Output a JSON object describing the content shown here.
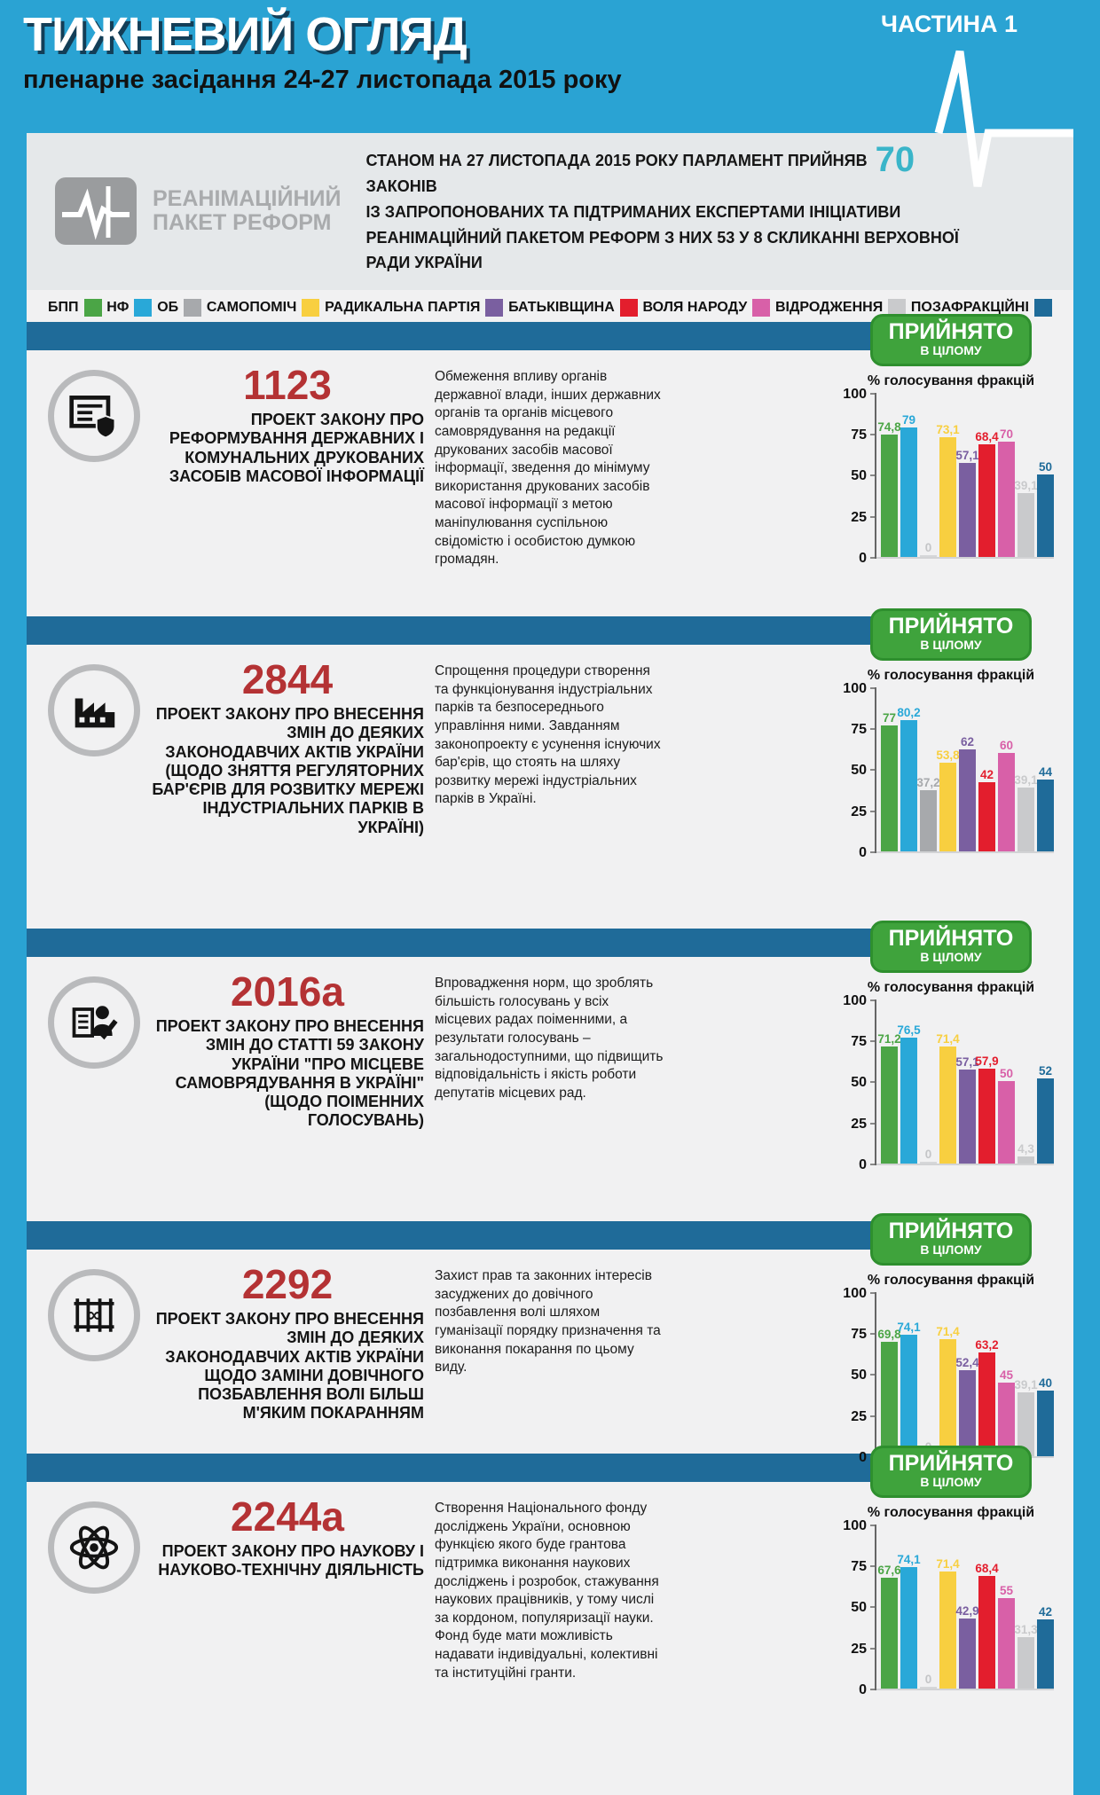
{
  "page": {
    "title": "ТИЖНЕВИЙ ОГЛЯД",
    "subtitle": "пленарне засідання 24-27 листопада 2015 року",
    "part_label": "ЧАСТИНА 1"
  },
  "colors": {
    "background": "#2aa3d3",
    "panel": "#f1f1f2",
    "intro_box": "#e5e8ea",
    "divider": "#1f6b99",
    "badge_green": "#3fa33c",
    "law_number_red": "#b43234",
    "accent_teal": "#3ab5c9"
  },
  "intro": {
    "logo_line1": "РЕАНІМАЦІЙНИЙ",
    "logo_line2": "ПАКЕТ РЕФОРМ",
    "line1_before": "СТАНОМ НА 27 ЛИСТОПАДА 2015 РОКУ ПАРЛАМЕНТ ПРИЙНЯВ",
    "laws_count": "70",
    "line1_after": "ЗАКОНІВ",
    "line2": "ІЗ ЗАПРОПОНОВАНИХ ТА ПІДТРИМАНИХ ЕКСПЕРТАМИ ІНІЦІАТИВИ",
    "line3": "РЕАНІМАЦІЙНИЙ ПАКЕТОМ РЕФОРМ З НИХ 53 У 8 СКЛИКАННІ ВЕРХОВНОЇ РАДИ УКРАЇНИ"
  },
  "legend": {
    "items": [
      {
        "label": "БПП",
        "color": "#4ba546"
      },
      {
        "label": "НФ",
        "color": "#29a8d8"
      },
      {
        "label": "ОБ",
        "color": "#a7a9ac"
      },
      {
        "label": "САМОПОМІЧ",
        "color": "#f8cf40"
      },
      {
        "label": "РАДИКАЛЬНА ПАРТІЯ",
        "color": "#7a5fa0"
      },
      {
        "label": "БАТЬКІВЩИНА",
        "color": "#e31e2d"
      },
      {
        "label": "ВОЛЯ НАРОДУ",
        "color": "#d860a8"
      },
      {
        "label": "ВІДРОДЖЕННЯ",
        "color": "#c9cacc"
      },
      {
        "label": "ПОЗАФРАКЦІЙНІ",
        "color": "#1f6b99"
      }
    ]
  },
  "common": {
    "badge_line1": "ПРИЙНЯТО",
    "badge_line2": "В ЦІЛОМУ"
  },
  "chart_common": {
    "title": "% голосування фракцій",
    "yticks": [
      100,
      75,
      50,
      25,
      0
    ]
  },
  "sections": [
    {
      "number": "1123",
      "icon": "newspaper-shield",
      "title": "ПРОЕКТ ЗАКОНУ ПРО РЕФОРМУВАННЯ ДЕРЖАВНИХ І КОМУНАЛЬНИХ ДРУКОВАНИХ ЗАСОБІВ МАСОВОЇ ІНФОРМАЦІЇ",
      "description": "Обмеження впливу органів державної влади, інших державних органів та органів місцевого самоврядування на редакції друкованих засобів масової інформації, зведення до мінімуму використання друкованих засобів масової інформації з метою маніпулювання суспільною свідомістю і особистою думкою громадян."
    },
    {
      "number": "2844",
      "icon": "factory",
      "title": "ПРОЕКТ ЗАКОНУ ПРО ВНЕСЕННЯ ЗМІН ДО ДЕЯКИХ ЗАКОНОДАВЧИХ АКТІВ УКРАЇНИ (ЩОДО ЗНЯТТЯ РЕГУЛЯТОРНИХ БАР'ЄРІВ ДЛЯ РОЗВИТКУ МЕРЕЖІ ІНДУСТРІАЛЬНИХ ПАРКІВ В УКРАЇНІ)",
      "description": "Спрощення процедури створення та функціонування індустріальних парків та безпосереднього управління ними. Завданням законопроекту є усунення існуючих бар'єрів, що стоять на шляху розвитку мережі індустріальних парків в Україні."
    },
    {
      "number": "2016а",
      "icon": "voter-checklist",
      "title": "ПРОЕКТ ЗАКОНУ ПРО ВНЕСЕННЯ ЗМІН ДО СТАТТІ 59 ЗАКОНУ УКРАЇНИ \"ПРО МІСЦЕВЕ САМОВРЯДУВАННЯ В УКРАЇНІ\" (ЩОДО ПОІМЕННИХ ГОЛОСУВАНЬ)",
      "description": "Впровадження норм, що зроблять більшість голосувань у всіх місцевих радах поіменними, а результати голосувань – загальнодоступними, що підвищить відповідальність і якість роботи депутатів місцевих рад."
    },
    {
      "number": "2292",
      "icon": "prison-bars",
      "title": "ПРОЕКТ ЗАКОНУ ПРО ВНЕСЕННЯ ЗМІН ДО ДЕЯКИХ ЗАКОНОДАВЧИХ АКТІВ УКРАЇНИ ЩОДО ЗАМІНИ ДОВІЧНОГО ПОЗБАВЛЕННЯ ВОЛІ БІЛЬШ М'ЯКИМ ПОКАРАННЯМ",
      "description": "Захист прав та законних інтересів засуджених до довічного позбавлення волі шляхом гуманізації порядку призначення та виконання покарання по цьому виду."
    },
    {
      "number": "2244а",
      "icon": "atom",
      "title": "ПРОЕКТ ЗАКОНУ ПРО НАУКОВУ І НАУКОВО-ТЕХНІЧНУ ДІЯЛЬНІСТЬ",
      "description": "Створення Національного фонду досліджень України, основною функцією якого буде грантова підтримка виконання наукових досліджень і розробок, стажування наукових працівників, у тому числі за кордоном, популяризації науки. Фонд буде мати можливість надавати індивідуальні, колективні та інституційні гранти."
    }
  ],
  "chart_data": [
    {
      "type": "bar",
      "law": "1123",
      "title": "% голосування фракцій",
      "categories": [
        "БПП",
        "НФ",
        "ОБ",
        "САМОПОМІЧ",
        "РАДИКАЛЬНА ПАРТІЯ",
        "БАТЬКІВЩИНА",
        "ВОЛЯ НАРОДУ",
        "ВІДРОДЖЕННЯ",
        "ПОЗАФРАКЦІЙНІ"
      ],
      "values": [
        74.8,
        79,
        0,
        73.1,
        57.1,
        68.4,
        70,
        39.1,
        50
      ],
      "labels": [
        "74,8",
        "79",
        "0",
        "73,1",
        "57,1",
        "68,4",
        "70",
        "39,1",
        "50"
      ],
      "ylim": [
        0,
        100
      ],
      "ylabel": "%",
      "result": "ПРИЙНЯТО В ЦІЛОМУ"
    },
    {
      "type": "bar",
      "law": "2844",
      "title": "% голосування фракцій",
      "categories": [
        "БПП",
        "НФ",
        "ОБ",
        "САМОПОМІЧ",
        "РАДИКАЛЬНА ПАРТІЯ",
        "БАТЬКІВЩИНА",
        "ВОЛЯ НАРОДУ",
        "ВІДРОДЖЕННЯ",
        "ПОЗАФРАКЦІЙНІ"
      ],
      "values": [
        77,
        80.2,
        37.2,
        53.8,
        62,
        42,
        60,
        39.1,
        44
      ],
      "labels": [
        "77",
        "80,2",
        "37,2",
        "53,8",
        "62",
        "42",
        "60",
        "39,1",
        "44"
      ],
      "ylim": [
        0,
        100
      ],
      "ylabel": "%",
      "result": "ПРИЙНЯТО В ЦІЛОМУ"
    },
    {
      "type": "bar",
      "law": "2016а",
      "title": "% голосування фракцій",
      "categories": [
        "БПП",
        "НФ",
        "ОБ",
        "САМОПОМІЧ",
        "РАДИКАЛЬНА ПАРТІЯ",
        "БАТЬКІВЩИНА",
        "ВОЛЯ НАРОДУ",
        "ВІДРОДЖЕННЯ",
        "ПОЗАФРАКЦІЙНІ"
      ],
      "values": [
        71.2,
        76.5,
        0,
        71.4,
        57.1,
        57.9,
        50,
        4.3,
        52
      ],
      "labels": [
        "71,2",
        "76,5",
        "0",
        "71,4",
        "57,1",
        "57,9",
        "50",
        "4,3",
        "52"
      ],
      "ylim": [
        0,
        100
      ],
      "ylabel": "%",
      "result": "ПРИЙНЯТО В ЦІЛОМУ"
    },
    {
      "type": "bar",
      "law": "2292",
      "title": "% голосування фракцій",
      "categories": [
        "БПП",
        "НФ",
        "ОБ",
        "САМОПОМІЧ",
        "РАДИКАЛЬНА ПАРТІЯ",
        "БАТЬКІВЩИНА",
        "ВОЛЯ НАРОДУ",
        "ВІДРОДЖЕННЯ",
        "ПОЗАФРАКЦІЙНІ"
      ],
      "values": [
        69.8,
        74.1,
        0,
        71.4,
        52.4,
        63.2,
        45,
        39.1,
        40
      ],
      "labels": [
        "69,8",
        "74,1",
        "0",
        "71,4",
        "52,4",
        "63,2",
        "45",
        "39,1",
        "40"
      ],
      "ylim": [
        0,
        100
      ],
      "ylabel": "%",
      "result": "ПРИЙНЯТО В ЦІЛОМУ"
    },
    {
      "type": "bar",
      "law": "2244а",
      "title": "% голосування фракцій",
      "categories": [
        "БПП",
        "НФ",
        "ОБ",
        "САМОПОМІЧ",
        "РАДИКАЛЬНА ПАРТІЯ",
        "БАТЬКІВЩИНА",
        "ВОЛЯ НАРОДУ",
        "ВІДРОДЖЕННЯ",
        "ПОЗАФРАКЦІЙНІ"
      ],
      "values": [
        67.6,
        74.1,
        0,
        71.4,
        42.9,
        68.4,
        55,
        31.3,
        42
      ],
      "labels": [
        "67,6",
        "74,1",
        "0",
        "71,4",
        "42,9",
        "68,4",
        "55",
        "31,3",
        "42"
      ],
      "ylim": [
        0,
        100
      ],
      "ylabel": "%",
      "result": "ПРИЙНЯТО В ЦІЛОМУ"
    }
  ]
}
